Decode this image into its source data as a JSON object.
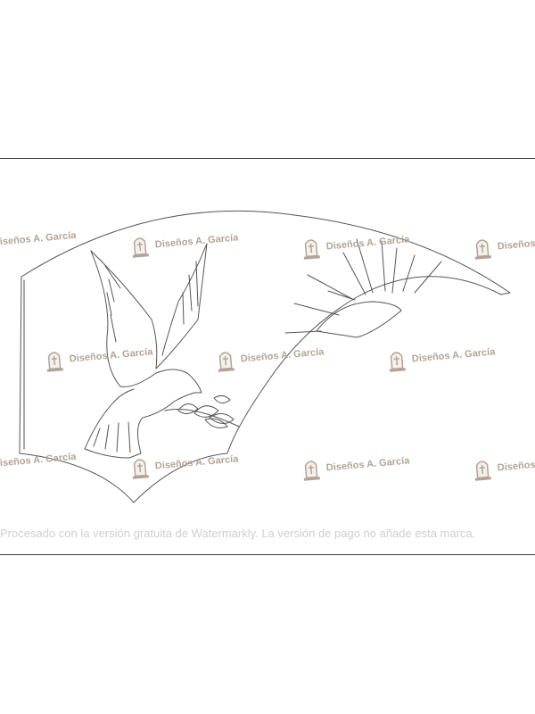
{
  "watermark": {
    "brand_text": "Diseños A. García",
    "icon": "tombstone-cross-icon",
    "color": "#a59582"
  },
  "footer_watermark": {
    "text": "Procesado con la versión gratuita de Watermarkly. La versión de pago no añade esta marca."
  },
  "artwork": {
    "subject_icons": [
      "dove-with-olive-branch-icon",
      "rising-sun-icon"
    ],
    "stroke_color": "#555555"
  }
}
